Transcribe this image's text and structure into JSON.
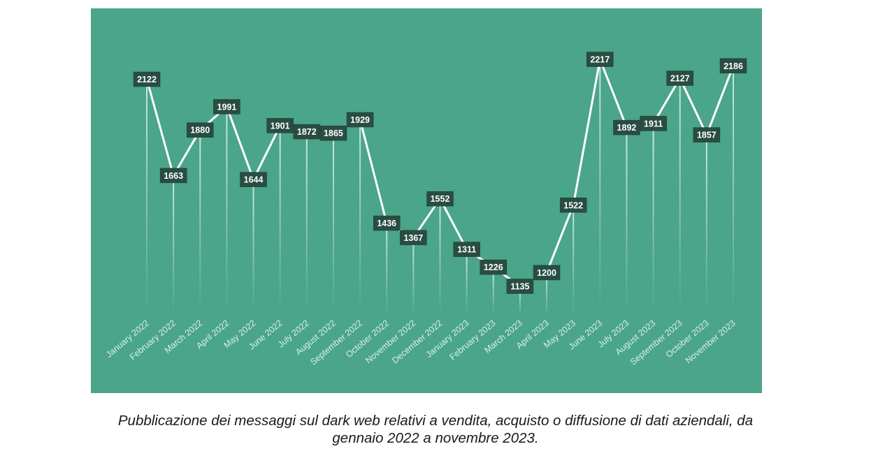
{
  "chart_data": {
    "type": "line",
    "title": "",
    "xlabel": "",
    "ylabel": "",
    "grid": false,
    "legend": "none",
    "categories": [
      "January 2022",
      "February 2022",
      "March 2022",
      "April 2022",
      "May 2022",
      "June 2022",
      "July 2022",
      "August 2022",
      "September 2022",
      "October 2022",
      "November 2022",
      "December 2022",
      "January 2023",
      "February 2023",
      "March 2023",
      "April 2023",
      "May 2023",
      "June 2023",
      "July 2023",
      "August 2023",
      "September 2023",
      "October 2023",
      "November 2023"
    ],
    "series": [
      {
        "values": [
          2122,
          1663,
          1880,
          1991,
          1644,
          1901,
          1872,
          1865,
          1929,
          1436,
          1367,
          1552,
          1311,
          1226,
          1135,
          1200,
          1522,
          2217,
          1892,
          1911,
          2127,
          1857,
          2186
        ]
      }
    ],
    "colors": {
      "background": "#4aa58a",
      "line": "#ffffff",
      "label_box": "#2a4d41",
      "label_text": "#ffffff",
      "tick_text": "#d8efe6"
    }
  },
  "caption": {
    "line1": "Pubblicazione dei messaggi sul dark web relativi a vendita, acquisto o diffusione di dati aziendali, da",
    "line2": "gennaio 2022 a novembre 2023."
  }
}
